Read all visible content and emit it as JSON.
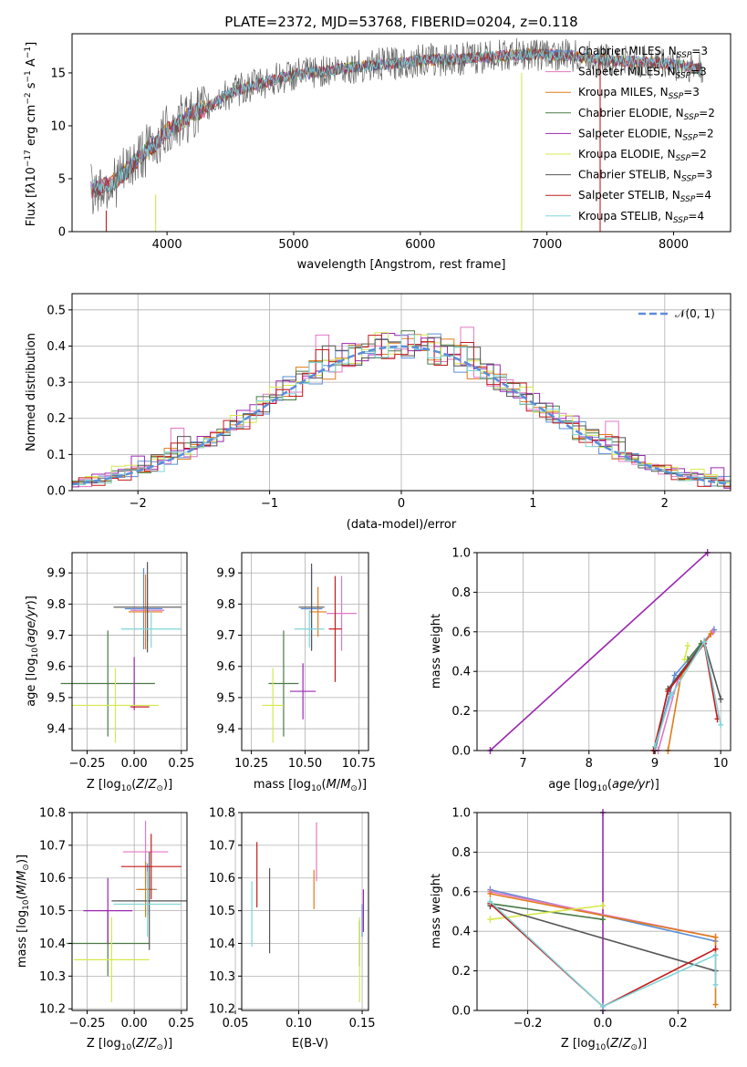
{
  "page": {
    "title": "PLATE=2372, MJD=53768, FIBERID=0204, z=0.118"
  },
  "colors": {
    "chabrier_miles": "#5b8dd8",
    "salpeter_miles": "#e377c2",
    "kroupa_miles": "#e07b1a",
    "chabrier_elodie": "#4a7a45",
    "salpeter_elodie": "#9b27b0",
    "kroupa_elodie": "#d6e84e",
    "chabrier_stelib": "#555555",
    "salpeter_stelib": "#c41c1c",
    "kroupa_stelib": "#7fd5d8",
    "gauss": "#5b8dd8"
  },
  "chart_data": [
    {
      "id": "spectrum",
      "type": "line",
      "xlabel": "wavelength [Angstrom, rest frame]",
      "ylabel": "Flux [f_λ10^-17 erg cm^-2 s^-1 A^-1]",
      "xlim": [
        3250,
        8450
      ],
      "ylim": [
        0,
        18.7
      ],
      "xticks": [
        "4000",
        "5000",
        "6000",
        "7000",
        "8000"
      ],
      "yticks": [
        "0",
        "5",
        "10",
        "15"
      ],
      "xtick_values": [
        4000,
        5000,
        6000,
        7000,
        8000
      ],
      "ytick_values": [
        0,
        5,
        10,
        15
      ],
      "continuum": {
        "x": [
          3400,
          3500,
          3600,
          3700,
          3800,
          3900,
          4000,
          4100,
          4200,
          4300,
          4400,
          4500,
          4700,
          5000,
          5200,
          5500,
          5800,
          6000,
          6300,
          6600,
          6900,
          7200,
          7500,
          7800,
          8000,
          8200
        ],
        "y": [
          4.0,
          4.3,
          4.8,
          6.0,
          7.3,
          8.2,
          9.5,
          10.3,
          11.2,
          11.6,
          12.4,
          13.1,
          13.9,
          14.8,
          15.1,
          15.6,
          15.9,
          16.2,
          16.3,
          16.6,
          16.8,
          16.6,
          16.2,
          16.0,
          15.8,
          15.4
        ]
      },
      "legend": [
        {
          "key": "chabrier_miles",
          "label": "Chabrier MILES, N",
          "sub": "SSP",
          "val": "=3"
        },
        {
          "key": "salpeter_miles",
          "label": "Salpeter MILES, N",
          "sub": "SSP",
          "val": "=3"
        },
        {
          "key": "kroupa_miles",
          "label": "Kroupa MILES, N",
          "sub": "SSP",
          "val": "=3"
        },
        {
          "key": "chabrier_elodie",
          "label": "Chabrier ELODIE, N",
          "sub": "SSP",
          "val": "=2"
        },
        {
          "key": "salpeter_elodie",
          "label": "Salpeter ELODIE, N",
          "sub": "SSP",
          "val": "=2"
        },
        {
          "key": "kroupa_elodie",
          "label": "Kroupa ELODIE, N",
          "sub": "SSP",
          "val": "=2"
        },
        {
          "key": "chabrier_stelib",
          "label": "Chabrier STELIB, N",
          "sub": "SSP",
          "val": "=3"
        },
        {
          "key": "salpeter_stelib",
          "label": "Salpeter STELIB, N",
          "sub": "SSP",
          "val": "=4"
        },
        {
          "key": "kroupa_stelib",
          "label": "Kroupa STELIB, N",
          "sub": "SSP",
          "val": "=4"
        }
      ],
      "dropouts": [
        {
          "key": "salpeter_stelib",
          "x": 3520,
          "y": 2.0
        },
        {
          "key": "kroupa_elodie",
          "x": 3910,
          "y": 3.5
        },
        {
          "key": "kroupa_elodie",
          "x": 6800,
          "y": 15.0
        },
        {
          "key": "salpeter_stelib",
          "x": 7420,
          "y": 16.0
        }
      ]
    },
    {
      "id": "residuals",
      "type": "histogram",
      "xlabel": "(data-model)/error",
      "ylabel": "Normed distribution",
      "xlim": [
        -2.5,
        2.5
      ],
      "ylim": [
        0,
        0.545
      ],
      "xticks": [
        "−2",
        "−1",
        "0",
        "1",
        "2"
      ],
      "xtick_values": [
        -2,
        -1,
        0,
        1,
        2
      ],
      "yticks": [
        "0.0",
        "0.1",
        "0.2",
        "0.3",
        "0.4",
        "0.5"
      ],
      "ytick_values": [
        0,
        0.1,
        0.2,
        0.3,
        0.4,
        0.5
      ],
      "bin_width": 0.1,
      "legend_label": "𝒩(0, 1)",
      "offsets": [
        [
          0.004,
          -0.01,
          0.015,
          0.0,
          -0.02,
          0.03,
          0.02,
          -0.015,
          -0.03,
          0.018,
          0.005
        ],
        [
          0.008,
          -0.02,
          -0.005,
          0.012,
          0.01,
          0.02,
          0.01,
          -0.01,
          0.12,
          -0.02,
          0.0
        ],
        [
          -0.005,
          0.01,
          0.02,
          -0.01,
          -0.005,
          0.025,
          -0.01,
          0.03,
          0.05,
          -0.012,
          0.01
        ],
        [
          0.01,
          0.005,
          -0.01,
          0.02,
          0.015,
          -0.01,
          0.03,
          0.02,
          0.06,
          0.01,
          -0.01
        ],
        [
          -0.01,
          0.015,
          0.025,
          0.02,
          0.03,
          0.07,
          -0.02,
          0.01,
          0.04,
          0.0,
          0.02
        ],
        [
          0.012,
          0.0,
          0.02,
          -0.015,
          0.05,
          0.03,
          0.0,
          0.035,
          0.01,
          -0.015,
          0.0
        ],
        [
          -0.004,
          -0.008,
          0.005,
          0.01,
          0.015,
          0.01,
          0.05,
          0.02,
          0.07,
          0.01,
          -0.01
        ],
        [
          0.006,
          0.02,
          -0.02,
          0.0,
          -0.03,
          0.01,
          -0.01,
          0.025,
          0.05,
          0.015,
          0.01
        ],
        [
          -0.01,
          -0.005,
          0.01,
          -0.02,
          0.005,
          0.02,
          0.01,
          -0.04,
          0.03,
          0.02,
          0.0
        ]
      ]
    },
    {
      "id": "age_vs_Z",
      "type": "errorbar",
      "xlabel": "Z [log10(Z/Z⊙)]",
      "ylabel": "age [log10(age/yr)]",
      "xlim": [
        -0.33,
        0.28
      ],
      "ylim": [
        9.33,
        9.965
      ],
      "xticks": [
        "−0.25",
        "0.00",
        "0.25"
      ],
      "xtick_values": [
        -0.25,
        0.0,
        0.25
      ],
      "yticks": [
        "9.4",
        "9.5",
        "9.6",
        "9.7",
        "9.8",
        "9.9"
      ],
      "ytick_values": [
        9.4,
        9.5,
        9.6,
        9.7,
        9.8,
        9.9
      ],
      "points": [
        {
          "key": "chabrier_miles",
          "x": 0.05,
          "xerr": 0.1,
          "y": 9.785,
          "yerr": 0.13
        },
        {
          "key": "salpeter_miles",
          "x": 0.07,
          "xerr": 0.09,
          "y": 9.78,
          "yerr": 0.1
        },
        {
          "key": "kroupa_miles",
          "x": 0.06,
          "xerr": 0.09,
          "y": 9.775,
          "yerr": 0.12
        },
        {
          "key": "chabrier_elodie",
          "x": -0.14,
          "xerr": 0.25,
          "y": 9.545,
          "yerr": 0.17
        },
        {
          "key": "salpeter_elodie",
          "x": 0.0,
          "xerr": 0.0,
          "y": 9.545,
          "yerr": 0.085
        },
        {
          "key": "kroupa_elodie",
          "x": -0.1,
          "xerr": 0.23,
          "y": 9.475,
          "yerr": 0.12
        },
        {
          "key": "chabrier_stelib",
          "x": 0.07,
          "xerr": 0.18,
          "y": 9.79,
          "yerr": 0.145
        },
        {
          "key": "salpeter_stelib",
          "x": 0.03,
          "xerr": 0.05,
          "y": 9.47,
          "yerr": 0.0
        },
        {
          "key": "kroupa_stelib",
          "x": 0.09,
          "xerr": 0.16,
          "y": 9.72,
          "yerr": 0.06
        }
      ]
    },
    {
      "id": "age_vs_mass",
      "type": "errorbar",
      "xlabel": "mass [log10(M/M⊙)]",
      "ylabel": "",
      "xlim": [
        10.205,
        10.795
      ],
      "ylim": [
        9.33,
        9.965
      ],
      "xticks": [
        "10.25",
        "10.50",
        "10.75"
      ],
      "xtick_values": [
        10.25,
        10.5,
        10.75
      ],
      "yticks": [
        "9.4",
        "9.5",
        "9.6",
        "9.7",
        "9.8",
        "9.9"
      ],
      "ytick_values": [
        9.4,
        9.5,
        9.6,
        9.7,
        9.8,
        9.9
      ],
      "points": [
        {
          "key": "chabrier_miles",
          "x": 10.53,
          "xerr": 0.05,
          "y": 9.785,
          "yerr": 0.13
        },
        {
          "key": "salpeter_miles",
          "x": 10.67,
          "xerr": 0.07,
          "y": 9.77,
          "yerr": 0.12
        },
        {
          "key": "kroupa_miles",
          "x": 10.56,
          "xerr": 0.04,
          "y": 9.775,
          "yerr": 0.08
        },
        {
          "key": "chabrier_elodie",
          "x": 10.4,
          "xerr": 0.07,
          "y": 9.545,
          "yerr": 0.17
        },
        {
          "key": "salpeter_elodie",
          "x": 10.49,
          "xerr": 0.06,
          "y": 9.52,
          "yerr": 0.09
        },
        {
          "key": "kroupa_elodie",
          "x": 10.35,
          "xerr": 0.05,
          "y": 9.475,
          "yerr": 0.12
        },
        {
          "key": "chabrier_stelib",
          "x": 10.53,
          "xerr": 0.06,
          "y": 9.79,
          "yerr": 0.14
        },
        {
          "key": "salpeter_stelib",
          "x": 10.64,
          "xerr": 0.03,
          "y": 9.72,
          "yerr": 0.17
        },
        {
          "key": "kroupa_stelib",
          "x": 10.52,
          "xerr": 0.07,
          "y": 9.72,
          "yerr": 0.06
        }
      ]
    },
    {
      "id": "weight_vs_age",
      "type": "line",
      "xlabel": "age [log10(age/yr)]",
      "ylabel": "mass weight",
      "xlim": [
        6.3,
        10.15
      ],
      "ylim": [
        0,
        1.0
      ],
      "xticks": [
        "7",
        "8",
        "9",
        "10"
      ],
      "xtick_values": [
        7,
        8,
        9,
        10
      ],
      "yticks": [
        "0.0",
        "0.2",
        "0.4",
        "0.6",
        "0.8",
        "1.0"
      ],
      "ytick_values": [
        0,
        0.2,
        0.4,
        0.6,
        0.8,
        1.0
      ],
      "series": [
        {
          "key": "salpeter_elodie",
          "x": [
            6.5,
            9.8
          ],
          "y": [
            0.0,
            1.0
          ]
        },
        {
          "key": "chabrier_miles",
          "x": [
            9.0,
            9.3,
            9.9
          ],
          "y": [
            0.0,
            0.38,
            0.61
          ]
        },
        {
          "key": "salpeter_miles",
          "x": [
            9.05,
            9.35,
            9.88
          ],
          "y": [
            0.0,
            0.36,
            0.6
          ]
        },
        {
          "key": "kroupa_miles",
          "x": [
            9.2,
            9.4,
            9.85
          ],
          "y": [
            0.0,
            0.38,
            0.59
          ]
        },
        {
          "key": "chabrier_elodie",
          "x": [
            9.5,
            9.7
          ],
          "y": [
            0.46,
            0.54
          ]
        },
        {
          "key": "kroupa_elodie",
          "x": [
            9.45,
            9.5
          ],
          "y": [
            0.46,
            0.53
          ]
        },
        {
          "key": "chabrier_stelib",
          "x": [
            9.0,
            9.2,
            9.75,
            10.0
          ],
          "y": [
            0.0,
            0.31,
            0.55,
            0.26
          ]
        },
        {
          "key": "salpeter_stelib",
          "x": [
            8.98,
            9.2,
            9.75,
            9.95
          ],
          "y": [
            0.0,
            0.3,
            0.54,
            0.16
          ]
        },
        {
          "key": "kroupa_stelib",
          "x": [
            9.0,
            9.25,
            9.75,
            10.0
          ],
          "y": [
            0.02,
            0.28,
            0.55,
            0.13
          ]
        }
      ]
    },
    {
      "id": "mass_vs_Z",
      "type": "errorbar",
      "xlabel": "Z [log10(Z/Z⊙)]",
      "ylabel": "mass [log10(M/M⊙)]",
      "xlim": [
        -0.33,
        0.28
      ],
      "ylim": [
        10.195,
        10.8
      ],
      "xticks": [
        "−0.25",
        "0.00",
        "0.25"
      ],
      "xtick_values": [
        -0.25,
        0.0,
        0.25
      ],
      "yticks": [
        "10.2",
        "10.3",
        "10.4",
        "10.5",
        "10.6",
        "10.7",
        "10.8"
      ],
      "ytick_values": [
        10.2,
        10.3,
        10.4,
        10.5,
        10.6,
        10.7,
        10.8
      ],
      "points": [
        {
          "key": "chabrier_miles",
          "x": 0.07,
          "xerr": 0.05,
          "y": 10.565,
          "yerr": 0.08
        },
        {
          "key": "salpeter_miles",
          "x": 0.06,
          "xerr": 0.12,
          "y": 10.68,
          "yerr": 0.095
        },
        {
          "key": "kroupa_miles",
          "x": 0.06,
          "xerr": 0.05,
          "y": 10.565,
          "yerr": 0.085
        },
        {
          "key": "chabrier_elodie",
          "x": -0.14,
          "xerr": 0.22,
          "y": 10.4,
          "yerr": 0.1
        },
        {
          "key": "salpeter_elodie",
          "x": -0.14,
          "xerr": 0.13,
          "y": 10.5,
          "yerr": 0.1
        },
        {
          "key": "kroupa_elodie",
          "x": -0.12,
          "xerr": 0.2,
          "y": 10.35,
          "yerr": 0.13
        },
        {
          "key": "chabrier_stelib",
          "x": 0.08,
          "xerr": 0.2,
          "y": 10.53,
          "yerr": 0.15
        },
        {
          "key": "salpeter_stelib",
          "x": 0.09,
          "xerr": 0.16,
          "y": 10.635,
          "yerr": 0.1
        },
        {
          "key": "kroupa_stelib",
          "x": 0.07,
          "xerr": 0.18,
          "y": 10.52,
          "yerr": 0.1
        }
      ]
    },
    {
      "id": "mass_vs_ebv",
      "type": "errorbar",
      "xlabel": "E(B-V)",
      "ylabel": "",
      "xlim": [
        0.055,
        0.155
      ],
      "ylim": [
        10.195,
        10.8
      ],
      "xticks": [
        "0.05",
        "0.10",
        "0.15"
      ],
      "xtick_values": [
        0.05,
        0.1,
        0.15
      ],
      "yticks": [
        "10.2",
        "10.3",
        "10.4",
        "10.5",
        "10.6",
        "10.7",
        "10.8"
      ],
      "ytick_values": [
        10.2,
        10.3,
        10.4,
        10.5,
        10.6,
        10.7,
        10.8
      ],
      "points": [
        {
          "key": "chabrier_miles",
          "x": 0.15,
          "xerr": 0,
          "y": 10.47,
          "yerr": 0.05
        },
        {
          "key": "salpeter_miles",
          "x": 0.114,
          "xerr": 0,
          "y": 10.68,
          "yerr": 0.09
        },
        {
          "key": "kroupa_miles",
          "x": 0.112,
          "xerr": 0,
          "y": 10.565,
          "yerr": 0.06
        },
        {
          "key": "chabrier_elodie",
          "x": 0.148,
          "xerr": 0,
          "y": 10.4,
          "yerr": 0.07
        },
        {
          "key": "salpeter_elodie",
          "x": 0.151,
          "xerr": 0,
          "y": 10.5,
          "yerr": 0.065
        },
        {
          "key": "kroupa_elodie",
          "x": 0.148,
          "xerr": 0,
          "y": 10.35,
          "yerr": 0.13
        },
        {
          "key": "chabrier_stelib",
          "x": 0.077,
          "xerr": 0,
          "y": 10.5,
          "yerr": 0.13
        },
        {
          "key": "salpeter_stelib",
          "x": 0.067,
          "xerr": 0,
          "y": 10.61,
          "yerr": 0.1
        },
        {
          "key": "kroupa_stelib",
          "x": 0.063,
          "xerr": 0,
          "y": 10.49,
          "yerr": 0.1
        }
      ]
    },
    {
      "id": "weight_vs_Z",
      "type": "line",
      "xlabel": "Z [log10(Z/Z⊙)]",
      "ylabel": "mass weight",
      "xlim": [
        -0.335,
        0.34
      ],
      "ylim": [
        0,
        1.0
      ],
      "xticks": [
        "−0.2",
        "0.0",
        "0.2"
      ],
      "xtick_values": [
        -0.2,
        0.0,
        0.2
      ],
      "yticks": [
        "0.0",
        "0.2",
        "0.4",
        "0.6",
        "0.8",
        "1.0"
      ],
      "ytick_values": [
        0,
        0.2,
        0.4,
        0.6,
        0.8,
        1.0
      ],
      "series": [
        {
          "key": "salpeter_elodie",
          "x": [
            0.0,
            0.0
          ],
          "y": [
            0.0,
            1.0
          ]
        },
        {
          "key": "chabrier_miles",
          "x": [
            -0.3,
            0.3
          ],
          "y": [
            0.61,
            0.35
          ]
        },
        {
          "key": "salpeter_miles",
          "x": [
            -0.3,
            0.3
          ],
          "y": [
            0.6,
            0.37
          ]
        },
        {
          "key": "kroupa_miles",
          "x": [
            -0.3,
            0.3,
            0.3
          ],
          "y": [
            0.59,
            0.37,
            0.03
          ]
        },
        {
          "key": "chabrier_elodie",
          "x": [
            -0.3,
            0.0
          ],
          "y": [
            0.54,
            0.46
          ]
        },
        {
          "key": "kroupa_elodie",
          "x": [
            -0.3,
            0.0
          ],
          "y": [
            0.46,
            0.53
          ]
        },
        {
          "key": "chabrier_stelib",
          "x": [
            -0.3,
            0.3
          ],
          "y": [
            0.53,
            0.2
          ]
        },
        {
          "key": "salpeter_stelib",
          "x": [
            -0.3,
            0.0,
            0.3
          ],
          "y": [
            0.54,
            0.02,
            0.31
          ]
        },
        {
          "key": "kroupa_stelib",
          "x": [
            -0.3,
            0.0,
            0.3,
            0.3
          ],
          "y": [
            0.55,
            0.02,
            0.28,
            0.13
          ]
        }
      ]
    }
  ]
}
